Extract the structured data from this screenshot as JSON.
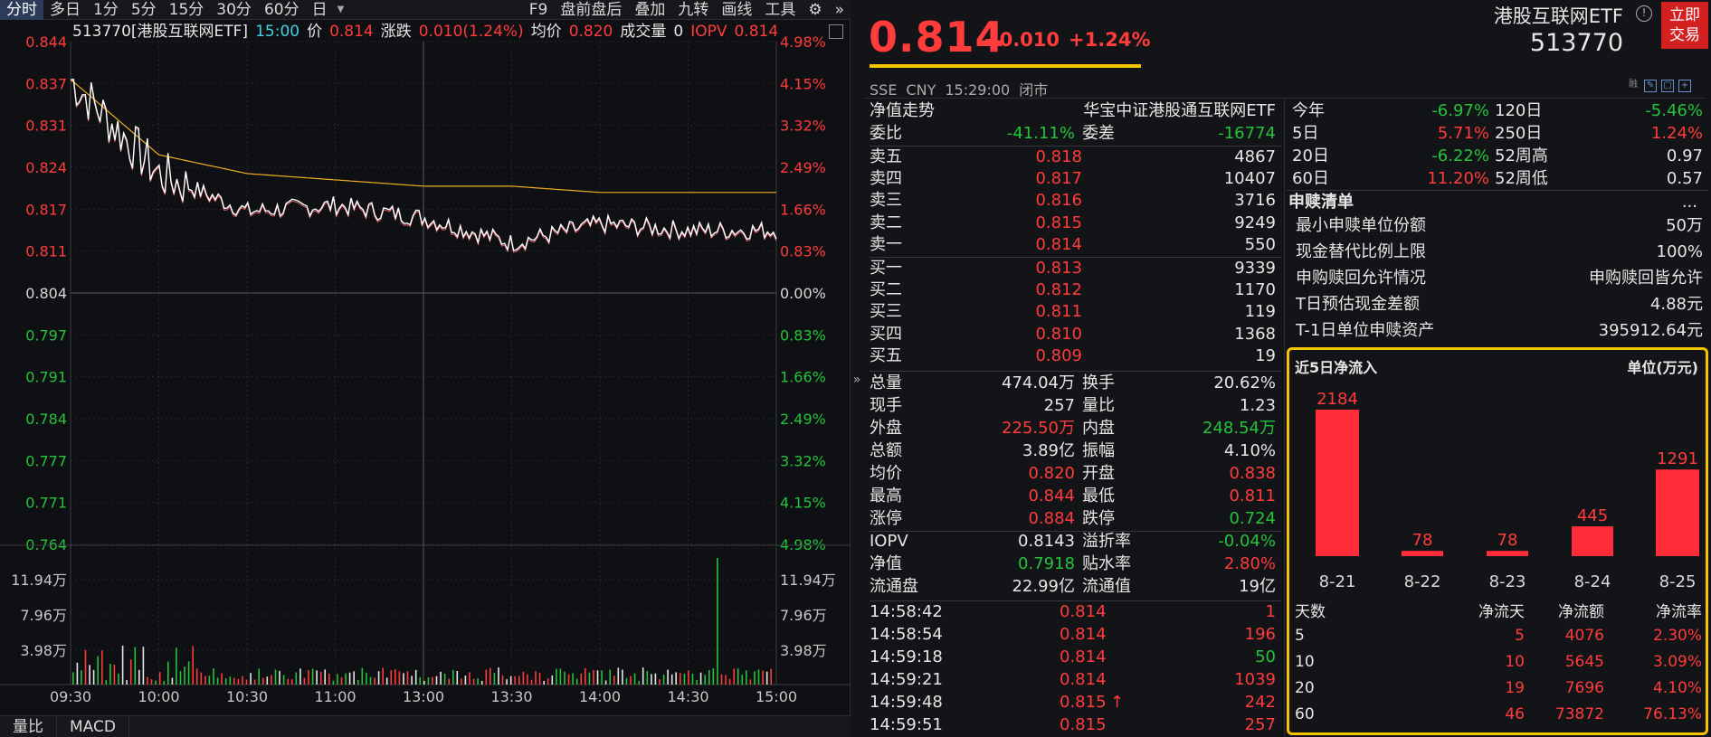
{
  "toolbar": {
    "timeframes": [
      "分时",
      "多日",
      "1分",
      "5分",
      "15分",
      "30分",
      "60分",
      "日"
    ],
    "right_items": [
      "F9",
      "盘前盘后",
      "叠加",
      "九转",
      "画线",
      "工具"
    ]
  },
  "infobar": {
    "title": "513770[港股互联网ETF]",
    "time": "15:00",
    "price_label": "价",
    "price": "0.814",
    "chg_label": "涨跌",
    "chg": "0.010(1.24%)",
    "avg_label": "均价",
    "avg": "0.820",
    "vol_label": "成交量",
    "vol": "0",
    "iopv_label": "IOPV",
    "iopv": "0.814"
  },
  "price_axis_left": [
    "0.844",
    "0.837",
    "0.831",
    "0.824",
    "0.817",
    "0.811",
    "0.804",
    "0.797",
    "0.791",
    "0.784",
    "0.777",
    "0.771",
    "0.764"
  ],
  "price_axis_right": [
    "4.98%",
    "4.15%",
    "3.32%",
    "2.49%",
    "1.66%",
    "0.83%",
    "0.00%",
    "0.83%",
    "1.66%",
    "2.49%",
    "3.32%",
    "4.15%",
    "4.98%"
  ],
  "volume_axis": [
    "11.94万",
    "7.96万",
    "3.98万"
  ],
  "time_axis": [
    "09:30",
    "10:00",
    "10:30",
    "11:00",
    "13:00",
    "13:30",
    "14:00",
    "14:30",
    "15:00"
  ],
  "bottom_tabs": [
    "量比",
    "MACD"
  ],
  "quote": {
    "price": "0.814",
    "change": "+0.010",
    "change_pct": "+1.24%",
    "market": [
      "SSE",
      "CNY",
      "15:29:00",
      "闭市"
    ],
    "name": "港股互联网ETF",
    "code": "513770",
    "trade_button": [
      "立即",
      "交易"
    ]
  },
  "nav_row": {
    "label": "净值走势",
    "value": "华宝中证港股通互联网ETF"
  },
  "ratio_row": {
    "label1": "委比",
    "value1": "-41.11%",
    "label2": "委差",
    "value2": "-16774"
  },
  "order_book": {
    "asks": [
      {
        "label": "卖五",
        "price": "0.818",
        "vol": "4867"
      },
      {
        "label": "卖四",
        "price": "0.817",
        "vol": "10407"
      },
      {
        "label": "卖三",
        "price": "0.816",
        "vol": "3716"
      },
      {
        "label": "卖二",
        "price": "0.815",
        "vol": "9249"
      },
      {
        "label": "卖一",
        "price": "0.814",
        "vol": "550"
      }
    ],
    "bids": [
      {
        "label": "买一",
        "price": "0.813",
        "vol": "9339"
      },
      {
        "label": "买二",
        "price": "0.812",
        "vol": "1170"
      },
      {
        "label": "买三",
        "price": "0.811",
        "vol": "119"
      },
      {
        "label": "买四",
        "price": "0.810",
        "vol": "1368"
      },
      {
        "label": "买五",
        "price": "0.809",
        "vol": "19"
      }
    ]
  },
  "stats": [
    {
      "l1": "总量",
      "v1": "474.04万",
      "c1": "white",
      "l2": "换手",
      "v2": "20.62%",
      "c2": "white"
    },
    {
      "l1": "现手",
      "v1": "257",
      "c1": "white",
      "l2": "量比",
      "v2": "1.23",
      "c2": "white"
    },
    {
      "l1": "外盘",
      "v1": "225.50万",
      "c1": "red",
      "l2": "内盘",
      "v2": "248.54万",
      "c2": "green"
    },
    {
      "l1": "总额",
      "v1": "3.89亿",
      "c1": "white",
      "l2": "振幅",
      "v2": "4.10%",
      "c2": "white"
    },
    {
      "l1": "均价",
      "v1": "0.820",
      "c1": "red",
      "l2": "开盘",
      "v2": "0.838",
      "c2": "red"
    },
    {
      "l1": "最高",
      "v1": "0.844",
      "c1": "red",
      "l2": "最低",
      "v2": "0.811",
      "c2": "red"
    },
    {
      "l1": "涨停",
      "v1": "0.884",
      "c1": "red",
      "l2": "跌停",
      "v2": "0.724",
      "c2": "green"
    }
  ],
  "stats2": [
    {
      "l1": "IOPV",
      "v1": "0.8143",
      "c1": "white",
      "l2": "溢折率",
      "v2": "-0.04%",
      "c2": "green"
    },
    {
      "l1": "净值",
      "v1": "0.7918",
      "c1": "green",
      "l2": "贴水率",
      "v2": "2.80%",
      "c2": "red"
    },
    {
      "l1": "流通盘",
      "v1": "22.99亿",
      "c1": "white",
      "l2": "流通值",
      "v2": "19亿",
      "c2": "white"
    }
  ],
  "trades": [
    {
      "time": "14:58:42",
      "price": "0.814",
      "vol": "1",
      "vc": "red"
    },
    {
      "time": "14:58:54",
      "price": "0.814",
      "vol": "196",
      "vc": "red"
    },
    {
      "time": "14:59:18",
      "price": "0.814",
      "vol": "50",
      "vc": "green"
    },
    {
      "time": "14:59:21",
      "price": "0.814",
      "vol": "1039",
      "vc": "red"
    },
    {
      "time": "14:59:48",
      "price": "0.815",
      "vol": "242",
      "vc": "red",
      "arrow": "↑"
    },
    {
      "time": "14:59:51",
      "price": "0.815",
      "vol": "257",
      "vc": "red"
    }
  ],
  "performance": [
    {
      "l1": "今年",
      "v1": "-6.97%",
      "c1": "green",
      "l2": "120日",
      "v2": "-5.46%",
      "c2": "green"
    },
    {
      "l1": "5日",
      "v1": "5.71%",
      "c1": "red",
      "l2": "250日",
      "v2": "1.24%",
      "c2": "red"
    },
    {
      "l1": "20日",
      "v1": "-6.22%",
      "c1": "green",
      "l2": "52周高",
      "v2": "0.97",
      "c2": "white"
    },
    {
      "l1": "60日",
      "v1": "11.20%",
      "c1": "red",
      "l2": "52周低",
      "v2": "0.57",
      "c2": "white"
    }
  ],
  "redemption": {
    "title": "申赎清单",
    "more": "...",
    "rows": [
      {
        "label": "最小申赎单位份额",
        "value": "50万"
      },
      {
        "label": "现金替代比例上限",
        "value": "100%"
      },
      {
        "label": "申购赎回允许情况",
        "value": "申购赎回皆允许"
      },
      {
        "label": "T日预估现金差额",
        "value": "4.88元"
      },
      {
        "label": "T-1日单位申赎资产",
        "value": "395912.64元"
      }
    ]
  },
  "net_flow": {
    "title": "近5日净流入",
    "unit": "单位(万元)",
    "bar_color": "#ff2d3a",
    "table_headers": [
      "天数",
      "净流天",
      "净流额",
      "净流率"
    ],
    "table": [
      [
        "5",
        "5",
        "4076",
        "2.30%"
      ],
      [
        "10",
        "10",
        "5645",
        "3.09%"
      ],
      [
        "20",
        "19",
        "7696",
        "4.10%"
      ],
      [
        "60",
        "46",
        "73872",
        "76.13%"
      ]
    ]
  },
  "chart_data": [
    {
      "type": "line",
      "x": [
        "09:30",
        "10:00",
        "10:30",
        "11:00",
        "13:00",
        "13:30",
        "14:00",
        "14:30",
        "15:00"
      ],
      "series": [
        {
          "values": [
            0.838,
            0.823,
            0.817,
            0.818,
            0.816,
            0.812,
            0.815,
            0.814,
            0.814
          ]
        },
        {
          "values": [
            0.838,
            0.826,
            0.823,
            0.822,
            0.821,
            0.821,
            0.82,
            0.82,
            0.82
          ]
        }
      ],
      "ylim": [
        0.764,
        0.844
      ],
      "grid": true
    },
    {
      "type": "bar",
      "categories": [
        "8-21",
        "8-22",
        "8-23",
        "8-24",
        "8-25"
      ],
      "values": [
        2184,
        78,
        78,
        445,
        1291
      ],
      "title": "近5日净流入",
      "ylabel": "单位(万元)"
    }
  ]
}
